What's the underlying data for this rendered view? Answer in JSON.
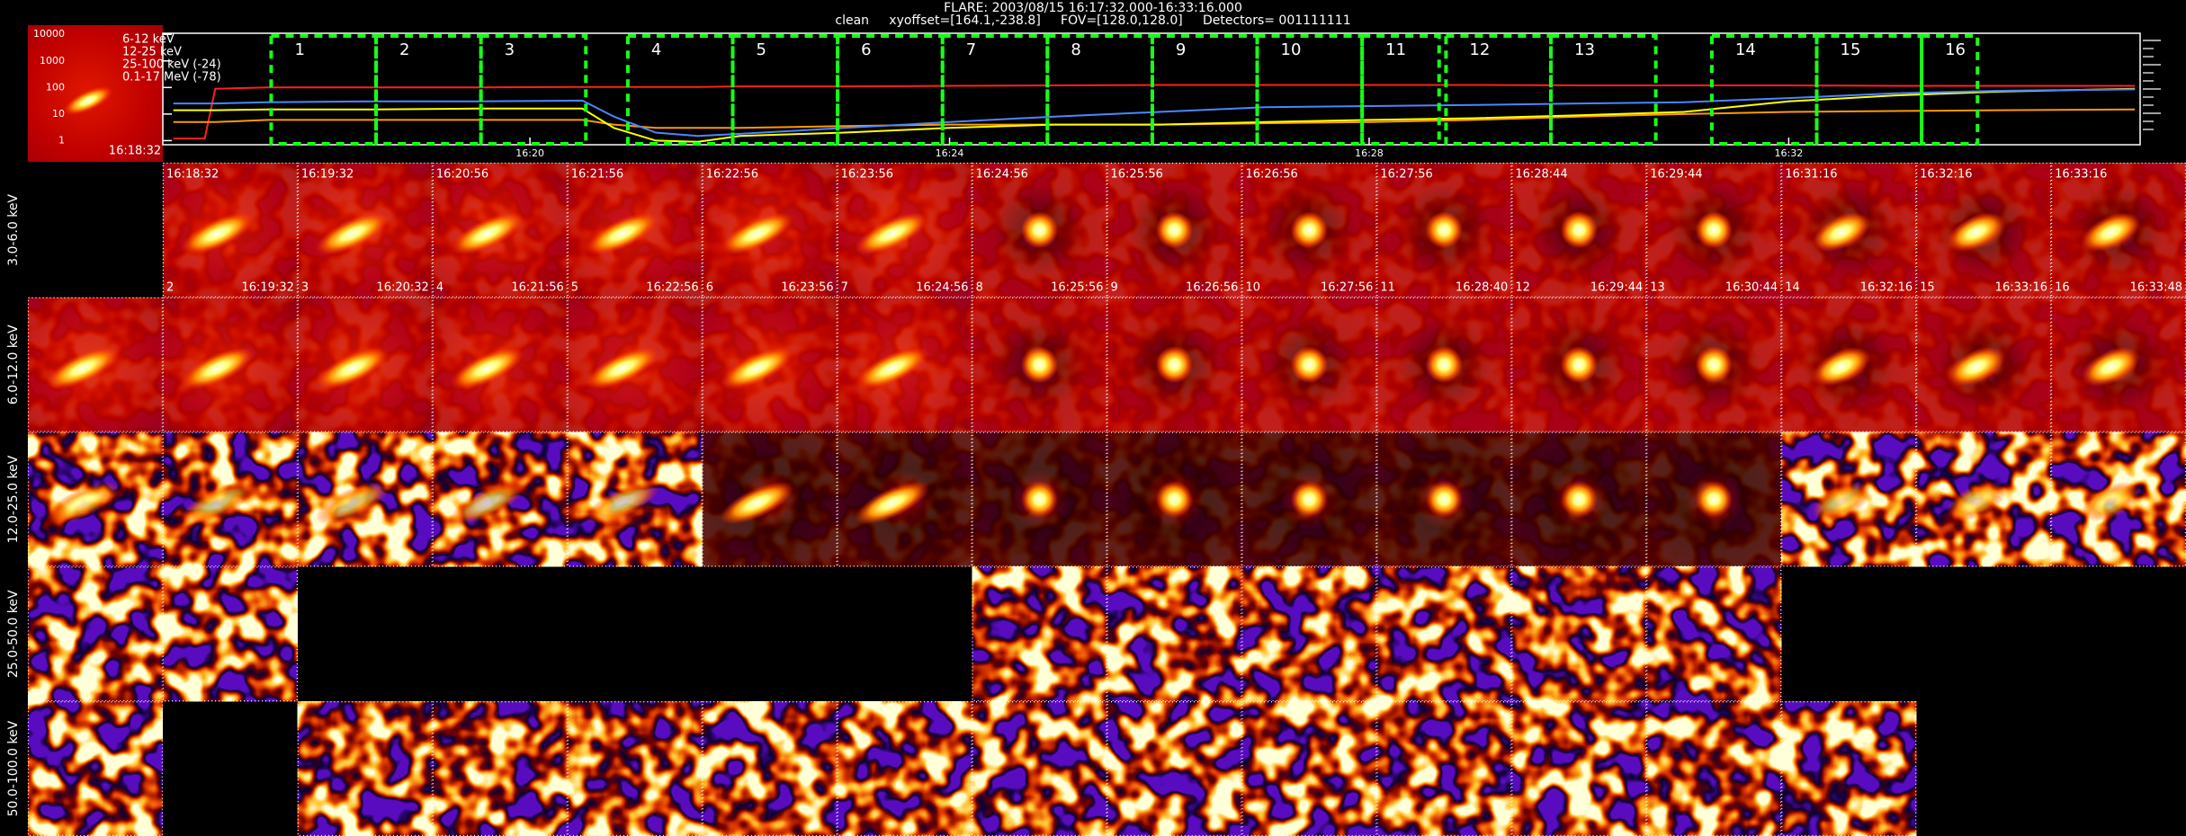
{
  "header": {
    "title": "FLARE: 2003/08/15 16:17:32.000-16:33:16.000",
    "subtitle": "clean     xyoffset=[164.1,-238.8]     FOV=[128.0,128.0]     Detectors= 001111111"
  },
  "chart_data": {
    "type": "line",
    "log_y": true,
    "x": [
      16.6,
      16.9,
      17.0,
      17.5,
      18.5,
      19.5,
      20.5,
      20.8,
      21.2,
      21.6,
      22,
      23,
      24,
      25,
      26,
      27,
      28,
      29,
      30,
      31,
      32,
      33,
      34,
      35.3
    ],
    "xlim": [
      16.5,
      35.35
    ],
    "xticks": [
      {
        "value": 20,
        "label": "16:20"
      },
      {
        "value": 24,
        "label": "16:24"
      },
      {
        "value": 28,
        "label": "16:28"
      },
      {
        "value": 32,
        "label": "16:32"
      }
    ],
    "ylim": [
      0.7,
      11000
    ],
    "yticks": [
      1,
      10,
      100,
      1000,
      10000
    ],
    "series": [
      {
        "name": "6-12 keV",
        "color": "#ff2020",
        "values": [
          1.2,
          1.2,
          90,
          100,
          100,
          100,
          105,
          105,
          105,
          105,
          110,
          110,
          115,
          120,
          125,
          125,
          125,
          125,
          120,
          120,
          120,
          115,
          115,
          115
        ]
      },
      {
        "name": "12-25 keV",
        "color": "#ff9900",
        "values": [
          5,
          5,
          5,
          6,
          6,
          6,
          6,
          4,
          3,
          3,
          3,
          3.5,
          4,
          4,
          4,
          4.5,
          5,
          6,
          8,
          10,
          12,
          13,
          14,
          15
        ]
      },
      {
        "name": "25-100 keV (-24)",
        "color": "#ffff00",
        "values": [
          14,
          14,
          14,
          15,
          15,
          16,
          16,
          3,
          1,
          0.9,
          1.5,
          2,
          3,
          4,
          4,
          5,
          6,
          7,
          9,
          12,
          30,
          50,
          70,
          90
        ]
      },
      {
        "name": "0.1-17 MeV (-78)",
        "color": "#4a86ff",
        "values": [
          25,
          25,
          25,
          28,
          30,
          30,
          32,
          8,
          2,
          1.5,
          1.8,
          3,
          5,
          8,
          12,
          18,
          20,
          22,
          25,
          28,
          40,
          60,
          75,
          85
        ]
      }
    ],
    "intervals": [
      {
        "label": "1",
        "start": 17.533,
        "end": 18.533
      },
      {
        "label": "2",
        "start": 18.533,
        "end": 19.533
      },
      {
        "label": "3",
        "start": 19.533,
        "end": 20.533
      },
      {
        "label": "4",
        "start": 20.933,
        "end": 21.933
      },
      {
        "label": "5",
        "start": 21.933,
        "end": 22.933
      },
      {
        "label": "6",
        "start": 22.933,
        "end": 23.933
      },
      {
        "label": "7",
        "start": 23.933,
        "end": 24.933
      },
      {
        "label": "8",
        "start": 24.933,
        "end": 25.933
      },
      {
        "label": "9",
        "start": 25.933,
        "end": 26.933
      },
      {
        "label": "10",
        "start": 26.933,
        "end": 27.933
      },
      {
        "label": "11",
        "start": 27.933,
        "end": 28.667
      },
      {
        "label": "12",
        "start": 28.733,
        "end": 29.733
      },
      {
        "label": "13",
        "start": 29.733,
        "end": 30.733
      },
      {
        "label": "14",
        "start": 31.267,
        "end": 32.267
      },
      {
        "label": "15",
        "start": 32.267,
        "end": 33.267
      },
      {
        "label": "16",
        "start": 33.267,
        "end": 33.8
      }
    ]
  },
  "thumbnail": {
    "label": "16:18:32"
  },
  "mosaic": {
    "rows": [
      {
        "label": "3.0-6.0 keV"
      },
      {
        "label": "6.0-12.0 keV"
      },
      {
        "label": "12.0-25.0 keV"
      },
      {
        "label": "25.0-50.0 keV"
      },
      {
        "label": "50.0-100.0 keV"
      }
    ],
    "tiles": [
      {
        "number": "2",
        "start": "16:18:32",
        "end": "16:19:32"
      },
      {
        "number": "3",
        "start": "16:19:32",
        "end": "16:20:32"
      },
      {
        "number": "4",
        "start": "16:20:56",
        "end": "16:21:56"
      },
      {
        "number": "5",
        "start": "16:21:56",
        "end": "16:22:56"
      },
      {
        "number": "6",
        "start": "16:22:56",
        "end": "16:23:56"
      },
      {
        "number": "7",
        "start": "16:23:56",
        "end": "16:24:56"
      },
      {
        "number": "8",
        "start": "16:24:56",
        "end": "16:25:56"
      },
      {
        "number": "9",
        "start": "16:25:56",
        "end": "16:26:56"
      },
      {
        "number": "10",
        "start": "16:26:56",
        "end": "16:27:56"
      },
      {
        "number": "11",
        "start": "16:27:56",
        "end": "16:28:40"
      },
      {
        "number": "12",
        "start": "16:28:44",
        "end": "16:29:44"
      },
      {
        "number": "13",
        "start": "16:29:44",
        "end": "16:30:44"
      },
      {
        "number": "14",
        "start": "16:31:16",
        "end": "16:32:16"
      },
      {
        "number": "15",
        "start": "16:32:16",
        "end": "16:33:16"
      },
      {
        "number": "16",
        "start": "16:33:16",
        "end": "16:33:48"
      }
    ]
  }
}
